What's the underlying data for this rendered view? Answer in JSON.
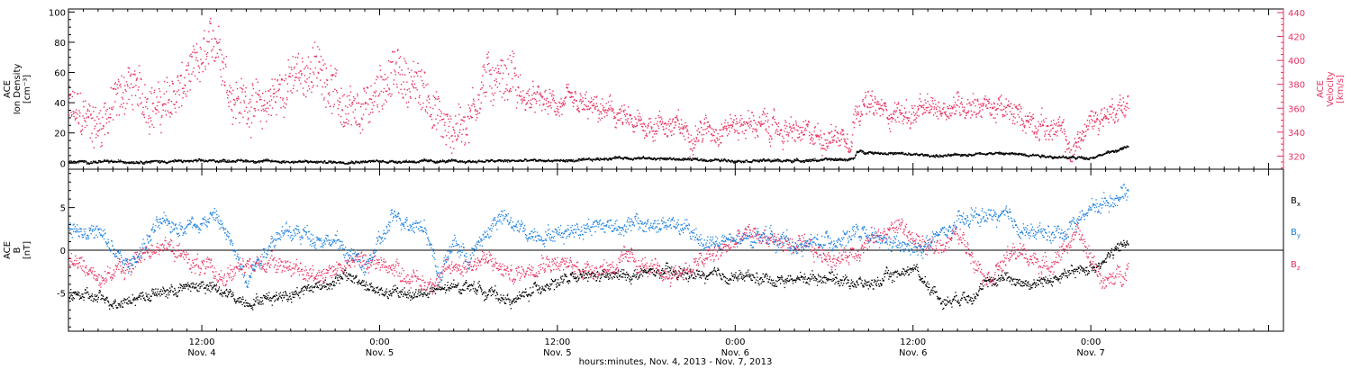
{
  "colors": {
    "black": "#000000",
    "pink": "#e8325f",
    "blue": "#1a7fe0"
  },
  "footer": {
    "xlabel": "hours:minutes, Nov.  4, 2013 - Nov.  7, 2013"
  },
  "x_ticks": [
    {
      "t": 12,
      "line1": "12:00",
      "line2": "Nov. 4"
    },
    {
      "t": 24,
      "line1": "0:00",
      "line2": "Nov. 5"
    },
    {
      "t": 36,
      "line1": "12:00",
      "line2": "Nov. 5"
    },
    {
      "t": 48,
      "line1": "0:00",
      "line2": "Nov. 6"
    },
    {
      "t": 60,
      "line1": "12:00",
      "line2": "Nov. 6"
    },
    {
      "t": 72,
      "line1": "0:00",
      "line2": "Nov. 7"
    }
  ],
  "chart_data": [
    {
      "type": "scatter",
      "panel": "plasma",
      "title": "",
      "xlabel": "hours:minutes, Nov.  4, 2013 - Nov.  7, 2013",
      "x_unit": "hours since Nov. 4 0:00",
      "xlim": [
        3,
        85
      ],
      "left_axis": {
        "label_lines": [
          "ACE",
          "Ion Density",
          "[cm⁻³]"
        ],
        "ylim": [
          -4,
          102
        ],
        "ticks": [
          0,
          20,
          40,
          60,
          80,
          100
        ]
      },
      "right_axis": {
        "label_lines": [
          "ACE",
          "Velocity",
          "[km/s]"
        ],
        "ylim": [
          309,
          443
        ],
        "ticks": [
          320,
          340,
          360,
          380,
          400,
          420,
          440
        ]
      },
      "series": [
        {
          "name": "Ion Density",
          "axis": "left",
          "color": "#000000",
          "x": [
            3,
            10,
            14,
            20,
            24,
            30,
            34,
            37.5,
            40,
            44,
            48,
            52,
            56,
            56.2,
            60,
            62,
            65,
            68,
            70,
            72,
            74.5
          ],
          "y": [
            1,
            1.5,
            2,
            1,
            1.5,
            1.5,
            2,
            2,
            4,
            3,
            2,
            2,
            3,
            8,
            6,
            5,
            7,
            6,
            4,
            4,
            11
          ]
        },
        {
          "name": "Velocity",
          "axis": "right",
          "color": "#e8325f",
          "x": [
            3,
            5,
            7,
            9,
            10.5,
            12,
            13,
            14,
            16,
            18,
            20,
            21.5,
            22.5,
            24,
            25,
            27,
            28.5,
            30,
            31,
            32.5,
            33,
            33.3,
            35,
            38,
            40,
            41,
            43,
            45,
            47,
            49,
            51,
            53,
            55.8,
            56.2,
            58,
            60,
            62,
            64,
            66,
            68,
            70,
            70.6,
            72,
            74.5
          ],
          "y": [
            360,
            345,
            380,
            360,
            375,
            400,
            420,
            370,
            360,
            385,
            395,
            360,
            350,
            380,
            390,
            375,
            340,
            350,
            385,
            385,
            392,
            370,
            365,
            360,
            355,
            345,
            348,
            340,
            345,
            348,
            342,
            337,
            338,
            365,
            358,
            355,
            362,
            365,
            358,
            350,
            340,
            322,
            350,
            365
          ]
        }
      ]
    },
    {
      "type": "scatter",
      "panel": "magnetic_field",
      "title": "",
      "xlabel": "hours:minutes, Nov.  4, 2013 - Nov.  7, 2013",
      "x_unit": "hours since Nov. 4 0:00",
      "xlim": [
        3,
        85
      ],
      "left_axis": {
        "label_lines": [
          "ACE",
          "B",
          "[nT]"
        ],
        "ylim": [
          -9.5,
          9.5
        ],
        "ticks": [
          -5,
          0,
          5
        ]
      },
      "zero_line": true,
      "series": [
        {
          "name": "Bx",
          "label": "B",
          "sub": "x",
          "color": "#000000",
          "x": [
            3,
            6,
            9,
            12,
            15,
            18,
            20,
            22,
            24,
            27,
            30,
            33,
            35,
            38,
            40,
            43,
            46,
            48,
            51,
            54,
            57,
            60,
            62,
            64,
            66,
            68,
            70,
            72,
            74.5
          ],
          "y": [
            -5,
            -6,
            -5,
            -4,
            -6,
            -5,
            -4,
            -3,
            -5,
            -5,
            -4,
            -6,
            -4,
            -3,
            -3,
            -2.5,
            -3,
            -3,
            -3.5,
            -3,
            -4,
            -2,
            -6,
            -5,
            -3,
            -4,
            -3,
            -2,
            1
          ]
        },
        {
          "name": "By",
          "label": "B",
          "sub": "y",
          "color": "#1a7fe0",
          "x": [
            3,
            5,
            7,
            9,
            11,
            13,
            15,
            17,
            19,
            21,
            23,
            25,
            27,
            28,
            29,
            30,
            32,
            34,
            36,
            38,
            40,
            42,
            44,
            46,
            48,
            50,
            52,
            54,
            56,
            58,
            60,
            62,
            64,
            66,
            68,
            70,
            72,
            74.5
          ],
          "y": [
            3,
            2,
            -2,
            3,
            3,
            4,
            -3,
            2,
            2,
            1,
            -2,
            4,
            3,
            -3,
            1,
            -1,
            4,
            2,
            2,
            3,
            3,
            3,
            3,
            1,
            1,
            2,
            0.5,
            1,
            2,
            1,
            0,
            2,
            4,
            4,
            2,
            2,
            5,
            7
          ]
        },
        {
          "name": "Bz",
          "label": "B",
          "sub": "z",
          "color": "#e8325f",
          "x": [
            3,
            5,
            7,
            9,
            11,
            13,
            15,
            17,
            19,
            21,
            23,
            25,
            27,
            29,
            31,
            33,
            35,
            37,
            39,
            41,
            43,
            45,
            47,
            49,
            51,
            53,
            55,
            57,
            59,
            61,
            63,
            65,
            67,
            69,
            71,
            73,
            74.5
          ],
          "y": [
            -1,
            -3,
            -2,
            1,
            -1,
            -3,
            -2,
            -1,
            -3,
            -2,
            -1,
            -2,
            -4,
            -2,
            -1,
            -3,
            -1,
            -2,
            -2,
            -1,
            -3,
            -2,
            0,
            2,
            1,
            0,
            -1,
            1,
            3,
            0,
            2,
            -3,
            0,
            -2,
            2,
            -4,
            -2
          ]
        }
      ]
    }
  ]
}
